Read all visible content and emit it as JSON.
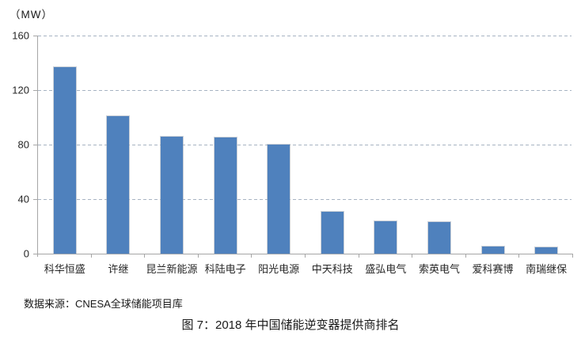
{
  "chart_data": {
    "type": "bar",
    "title": "图 7：2018 年中国储能逆变器提供商排名",
    "unit_label": "（MW）",
    "source": "数据来源：CNESA全球储能项目库",
    "categories": [
      "科华恒盛",
      "许继",
      "昆兰新能源",
      "科陆电子",
      "阳光电源",
      "中天科技",
      "盛弘电气",
      "索英电气",
      "爱科赛博",
      "南瑞继保"
    ],
    "values": [
      137,
      101,
      86,
      85,
      80,
      31,
      24,
      23,
      5,
      4.5
    ],
    "xlabel": "",
    "ylabel": "（MW）",
    "ylim": [
      0,
      160
    ],
    "y_ticks": [
      160,
      120,
      80,
      40,
      0
    ],
    "grid": "horizontal-dashed",
    "legend": "none",
    "bar_color": "#4f81bd",
    "gridline_color": "#a7b3c2",
    "axis_color": "#a6a6a6"
  }
}
